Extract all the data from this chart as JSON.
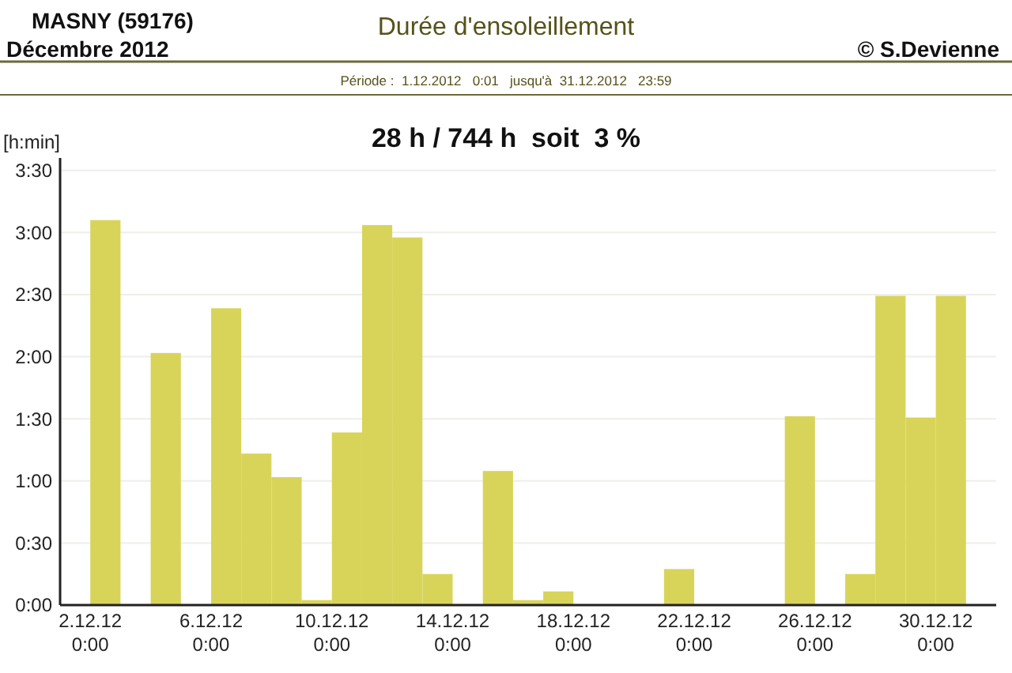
{
  "chart_data": {
    "type": "bar",
    "title": "Durée d'ensoleillement",
    "subtitle": "Période :  1.12.2012   0:01   jusqu'à  31.12.2012   23:59",
    "ylabel": "[h:min]",
    "annotations": [
      "MASNY (59176)",
      "Décembre  2012",
      "© S.Devienne",
      "28 h / 744 h  soit  3 %"
    ],
    "x": [
      "2012-12-01T12:00",
      "2012-12-02T12:00",
      "2012-12-03T12:00",
      "2012-12-04T12:00",
      "2012-12-05T12:00",
      "2012-12-06T12:00",
      "2012-12-07T12:00",
      "2012-12-08T12:00",
      "2012-12-09T12:00",
      "2012-12-10T12:00",
      "2012-12-11T12:00",
      "2012-12-12T12:00",
      "2012-12-13T12:00",
      "2012-12-14T12:00",
      "2012-12-15T12:00",
      "2012-12-16T12:00",
      "2012-12-17T12:00",
      "2012-12-18T12:00",
      "2012-12-19T12:00",
      "2012-12-20T12:00",
      "2012-12-21T12:00",
      "2012-12-22T12:00",
      "2012-12-23T12:00",
      "2012-12-24T12:00",
      "2012-12-25T12:00",
      "2012-12-26T12:00",
      "2012-12-27T12:00",
      "2012-12-28T12:00",
      "2012-12-29T12:00",
      "2012-12-30T12:00",
      "2012-12-31T12:00"
    ],
    "values": [
      0,
      3.1,
      0,
      2.03,
      0,
      2.39,
      1.22,
      1.03,
      0.04,
      1.39,
      3.06,
      2.96,
      0.25,
      0,
      1.08,
      0.04,
      0.11,
      0,
      0,
      0,
      0.29,
      0,
      0,
      0,
      1.52,
      0,
      0.25,
      2.49,
      1.51,
      2.49,
      0
    ],
    "color": "#d8d45a",
    "xlim": [
      "2012-12-01",
      "2013-01-01"
    ],
    "xticks": [
      {
        "value": "2012-12-02",
        "label": "2.12.12\n0:00"
      },
      {
        "value": "2012-12-06",
        "label": "6.12.12\n0:00"
      },
      {
        "value": "2012-12-10",
        "label": "10.12.12\n0:00"
      },
      {
        "value": "2012-12-14",
        "label": "14.12.12\n0:00"
      },
      {
        "value": "2012-12-18",
        "label": "18.12.12\n0:00"
      },
      {
        "value": "2012-12-22",
        "label": "22.12.12\n0:00"
      },
      {
        "value": "2012-12-26",
        "label": "26.12.12\n0:00"
      },
      {
        "value": "2012-12-30",
        "label": "30.12.12\n0:00"
      }
    ],
    "ylim": [
      0,
      3.6
    ],
    "yticks": [
      {
        "value": 0,
        "label": "0:00"
      },
      {
        "value": 0.5,
        "label": "0:30"
      },
      {
        "value": 1,
        "label": "1:00"
      },
      {
        "value": 1.5,
        "label": "1:30"
      },
      {
        "value": 2,
        "label": "2:00"
      },
      {
        "value": 2.5,
        "label": "2:30"
      },
      {
        "value": 3,
        "label": "3:00"
      },
      {
        "value": 3.5,
        "label": "3:30"
      }
    ],
    "grid": "y"
  }
}
